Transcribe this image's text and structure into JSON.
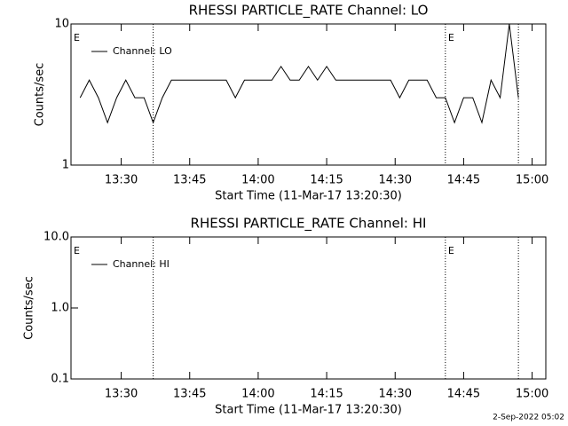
{
  "chart_data": [
    {
      "type": "line",
      "title": "RHESSI PARTICLE_RATE Channel: LO",
      "xlabel": "Start Time (11-Mar-17 13:20:30)",
      "ylabel": "Counts/sec",
      "xlim": [
        "13:19",
        "15:03"
      ],
      "xticks": [
        "13:30",
        "13:45",
        "14:00",
        "14:15",
        "14:30",
        "14:45",
        "15:00"
      ],
      "ylim": [
        1,
        10
      ],
      "yticks": [
        1,
        10
      ],
      "log_y": true,
      "legend": "upper left",
      "x": [
        "13:21",
        "13:23",
        "13:25",
        "13:27",
        "13:29",
        "13:31",
        "13:33",
        "13:35",
        "13:37",
        "13:39",
        "13:41",
        "13:43",
        "13:45",
        "13:47",
        "13:49",
        "13:51",
        "13:53",
        "13:55",
        "13:57",
        "13:59",
        "14:01",
        "14:03",
        "14:05",
        "14:07",
        "14:09",
        "14:11",
        "14:13",
        "14:15",
        "14:17",
        "14:19",
        "14:21",
        "14:23",
        "14:25",
        "14:27",
        "14:29",
        "14:31",
        "14:33",
        "14:35",
        "14:37",
        "14:39",
        "14:41",
        "14:43",
        "14:45",
        "14:47",
        "14:49",
        "14:51",
        "14:53",
        "14:55",
        "14:57"
      ],
      "series": [
        {
          "name": "Channel: LO",
          "color": "#000000",
          "values": [
            3,
            4,
            3,
            2,
            3,
            4,
            3,
            3,
            2,
            3,
            4,
            4,
            4,
            4,
            4,
            4,
            4,
            3,
            4,
            4,
            4,
            4,
            5,
            4,
            4,
            5,
            4,
            5,
            4,
            4,
            4,
            4,
            4,
            4,
            4,
            3,
            4,
            4,
            4,
            3,
            3,
            2,
            3,
            3,
            2,
            4,
            3,
            10,
            3
          ]
        }
      ],
      "vlines": [
        "13:37",
        "14:41",
        "14:57"
      ],
      "annotations": [
        {
          "text": "E",
          "x": "13:19"
        },
        {
          "text": "E",
          "x": "14:41"
        }
      ]
    },
    {
      "type": "line",
      "title": "RHESSI PARTICLE_RATE Channel: HI",
      "xlabel": "Start Time (11-Mar-17 13:20:30)",
      "ylabel": "Counts/sec",
      "xlim": [
        "13:19",
        "15:03"
      ],
      "xticks": [
        "13:30",
        "13:45",
        "14:00",
        "14:15",
        "14:30",
        "14:45",
        "15:00"
      ],
      "ylim": [
        0.1,
        10
      ],
      "yticks": [
        {
          "value": 0.1,
          "label": "0.1"
        },
        {
          "value": 1,
          "label": "1.0"
        },
        {
          "value": 10,
          "label": "10.0"
        }
      ],
      "log_y": true,
      "legend": "upper left",
      "x": [],
      "series": [
        {
          "name": "Channel: HI",
          "color": "#000000",
          "values": []
        }
      ],
      "vlines": [
        "13:37",
        "14:41",
        "14:57"
      ],
      "annotations": [
        {
          "text": "E",
          "x": "13:19"
        },
        {
          "text": "E",
          "x": "14:41"
        }
      ]
    }
  ],
  "footer": "2-Sep-2022 05:02"
}
